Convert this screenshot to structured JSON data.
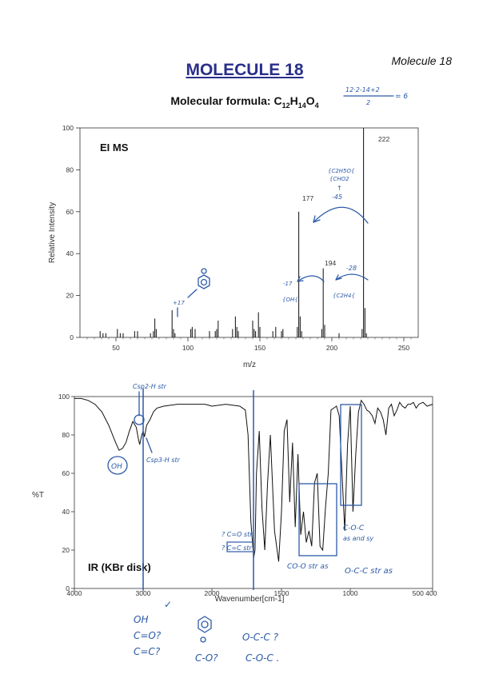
{
  "page": {
    "corner_label": "Molecule 18",
    "title": "MOLECULE 18",
    "formula_prefix": "Molecular formula: ",
    "formula_parts": [
      "C",
      "12",
      "H",
      "14",
      "O",
      "4"
    ]
  },
  "chart_data": [
    {
      "type": "bar",
      "title": "EI MS",
      "xlabel": "m/z",
      "ylabel": "Relative Intensity",
      "xlim": [
        25,
        260
      ],
      "ylim": [
        0,
        100
      ],
      "xticks": [
        50,
        100,
        150,
        200,
        250
      ],
      "yticks": [
        0,
        20,
        40,
        60,
        80,
        100
      ],
      "labeled_peaks": [
        {
          "mz": 222,
          "label": "222"
        },
        {
          "mz": 177,
          "label": "177"
        },
        {
          "mz": 194,
          "label": "194"
        }
      ],
      "peaks": [
        [
          39,
          3
        ],
        [
          41,
          2
        ],
        [
          43,
          2
        ],
        [
          51,
          4
        ],
        [
          53,
          2
        ],
        [
          55,
          2
        ],
        [
          63,
          3
        ],
        [
          65,
          3
        ],
        [
          74,
          2
        ],
        [
          76,
          3
        ],
        [
          77,
          9
        ],
        [
          78,
          4
        ],
        [
          89,
          13
        ],
        [
          90,
          4
        ],
        [
          91,
          2
        ],
        [
          102,
          4
        ],
        [
          103,
          5
        ],
        [
          105,
          4
        ],
        [
          115,
          3
        ],
        [
          119,
          3
        ],
        [
          120,
          4
        ],
        [
          121,
          8
        ],
        [
          131,
          4
        ],
        [
          133,
          10
        ],
        [
          134,
          5
        ],
        [
          135,
          3
        ],
        [
          145,
          8
        ],
        [
          146,
          4
        ],
        [
          147,
          3
        ],
        [
          149,
          12
        ],
        [
          150,
          5
        ],
        [
          159,
          3
        ],
        [
          161,
          5
        ],
        [
          165,
          3
        ],
        [
          166,
          4
        ],
        [
          176,
          5
        ],
        [
          177,
          60
        ],
        [
          178,
          10
        ],
        [
          179,
          3
        ],
        [
          193,
          4
        ],
        [
          194,
          33
        ],
        [
          195,
          6
        ],
        [
          205,
          2
        ],
        [
          221,
          4
        ],
        [
          222,
          100
        ],
        [
          223,
          14
        ],
        [
          224,
          2
        ]
      ]
    },
    {
      "type": "line",
      "title": "IR (KBr disk)",
      "xlabel": "Wavenumber[cm-1]",
      "ylabel": "%T",
      "xlim": [
        4000,
        400
      ],
      "ylim": [
        0,
        100
      ],
      "xticks": [
        4000,
        3000,
        2000,
        1500,
        1000,
        "500 400"
      ],
      "yticks": [
        0,
        20,
        40,
        60,
        80,
        100
      ],
      "x": [
        4000,
        3900,
        3800,
        3700,
        3600,
        3500,
        3400,
        3350,
        3300,
        3250,
        3200,
        3150,
        3100,
        3070,
        3050,
        3020,
        3000,
        2980,
        2950,
        2900,
        2850,
        2800,
        2700,
        2500,
        2300,
        2100,
        2000,
        1900,
        1800,
        1760,
        1740,
        1720,
        1700,
        1690,
        1680,
        1660,
        1640,
        1620,
        1600,
        1580,
        1550,
        1520,
        1500,
        1480,
        1460,
        1440,
        1420,
        1400,
        1380,
        1360,
        1340,
        1320,
        1300,
        1280,
        1260,
        1240,
        1220,
        1200,
        1180,
        1160,
        1140,
        1120,
        1100,
        1080,
        1060,
        1040,
        1020,
        1000,
        980,
        960,
        940,
        920,
        900,
        880,
        860,
        840,
        820,
        800,
        780,
        760,
        740,
        720,
        700,
        680,
        660,
        640,
        620,
        600,
        580,
        560,
        540,
        520,
        500,
        470,
        440,
        400
      ],
      "y": [
        99,
        99,
        98,
        96,
        92,
        85,
        76,
        72,
        73,
        76,
        82,
        87,
        84,
        78,
        75,
        80,
        82,
        79,
        85,
        88,
        92,
        94,
        95,
        96,
        96,
        96,
        95,
        96,
        95,
        93,
        80,
        35,
        16,
        20,
        60,
        82,
        42,
        20,
        55,
        80,
        30,
        14,
        40,
        82,
        88,
        45,
        76,
        32,
        70,
        28,
        40,
        24,
        30,
        22,
        55,
        60,
        22,
        20,
        42,
        60,
        93,
        94,
        95,
        90,
        60,
        30,
        75,
        95,
        40,
        70,
        92,
        98,
        96,
        93,
        92,
        90,
        86,
        94,
        92,
        88,
        80,
        94,
        96,
        90,
        93,
        97,
        95,
        94,
        96,
        96,
        97,
        94,
        96,
        97,
        95,
        96
      ]
    }
  ],
  "annotations": {
    "dbe": "12·2-14+2 / 2 = 6",
    "frag_45": "-45",
    "frag_28": "-28",
    "frag_17": "-17",
    "frag_box": "{ C2H5O / CHO2 }",
    "c2h4": "{C2H4}",
    "oh": "{OH}",
    "plus17": "+17",
    "csp2": "Csp2-H str",
    "csp3": "Csp3-H str",
    "oh_circle": "OH",
    "co_q": "? C=O str",
    "cc_q": "? C=C str",
    "co_c": "C-O-C",
    "co_c2": "as and sy",
    "co_oc_as": "CO-O str as",
    "ococ_as": "O-C-C str as",
    "notes": [
      "OH",
      "C=O?",
      "C=C?",
      "C-O?",
      "O-C-C ?",
      "C-O-C ."
    ]
  }
}
